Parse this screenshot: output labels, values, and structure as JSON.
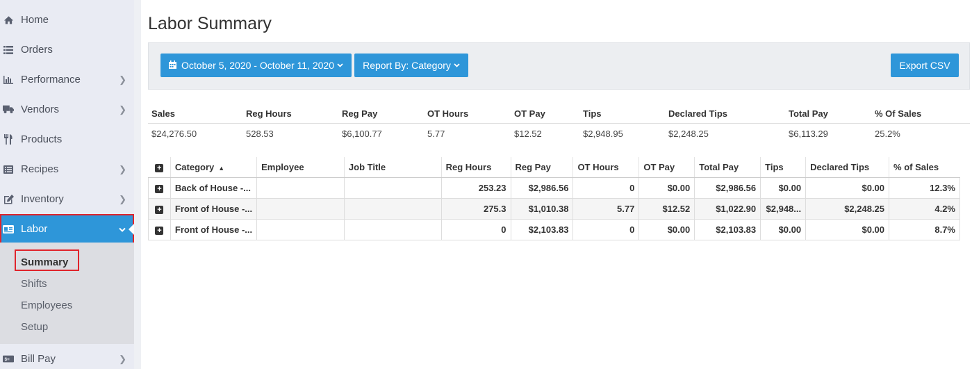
{
  "sidebar": {
    "items": [
      {
        "label": "Home",
        "icon": "home-icon"
      },
      {
        "label": "Orders",
        "icon": "list-icon"
      },
      {
        "label": "Performance",
        "icon": "bar-chart-icon"
      },
      {
        "label": "Vendors",
        "icon": "truck-icon"
      },
      {
        "label": "Products",
        "icon": "utensils-icon"
      },
      {
        "label": "Recipes",
        "icon": "list-alt-icon"
      },
      {
        "label": "Inventory",
        "icon": "edit-icon"
      },
      {
        "label": "Labor",
        "icon": "id-card-icon"
      },
      {
        "label": "Bill Pay",
        "icon": "money-icon"
      }
    ],
    "submenu": [
      "Summary",
      "Shifts",
      "Employees",
      "Setup"
    ]
  },
  "page": {
    "title": "Labor Summary"
  },
  "toolbar": {
    "date_range": "October 5, 2020 - October 11, 2020",
    "report_by": "Report By: Category",
    "export": "Export CSV"
  },
  "summary": {
    "headers": [
      "Sales",
      "Reg Hours",
      "Reg Pay",
      "OT Hours",
      "OT Pay",
      "Tips",
      "Declared Tips",
      "Total Pay",
      "% Of Sales"
    ],
    "values": [
      "$24,276.50",
      "528.53",
      "$6,100.77",
      "5.77",
      "$12.52",
      "$2,948.95",
      "$2,248.25",
      "$6,113.29",
      "25.2%"
    ]
  },
  "table": {
    "columns": [
      "Category",
      "Employee",
      "Job Title",
      "Reg Hours",
      "Reg Pay",
      "OT Hours",
      "OT Pay",
      "Total Pay",
      "Tips",
      "Declared Tips",
      "% of Sales"
    ],
    "rows": [
      [
        "Back of House -...",
        "",
        "",
        "253.23",
        "$2,986.56",
        "0",
        "$0.00",
        "$2,986.56",
        "$0.00",
        "$0.00",
        "12.3%"
      ],
      [
        "Front of House -...",
        "",
        "",
        "275.3",
        "$1,010.38",
        "5.77",
        "$12.52",
        "$1,022.90",
        "$2,948...",
        "$2,248.25",
        "4.2%"
      ],
      [
        "Front of House -...",
        "",
        "",
        "0",
        "$2,103.83",
        "0",
        "$0.00",
        "$2,103.83",
        "$0.00",
        "$0.00",
        "8.7%"
      ]
    ]
  },
  "colors": {
    "accent": "#2e96d9",
    "highlight": "#e0242c",
    "sidebar_bg": "#e9ebf3"
  }
}
